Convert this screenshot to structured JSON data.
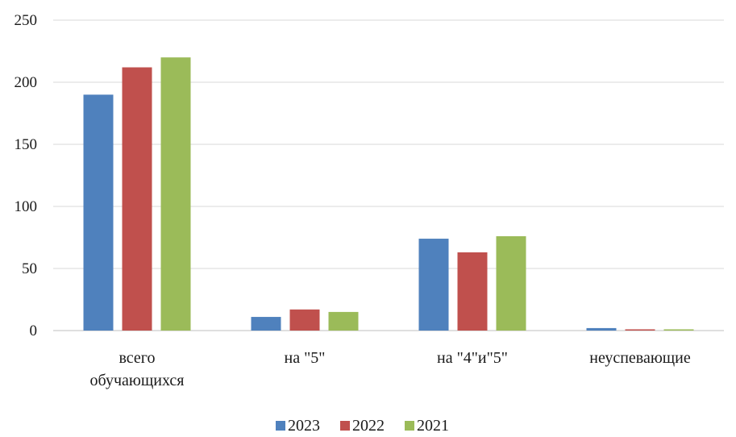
{
  "chart_data": {
    "type": "bar",
    "categories": [
      [
        "всего",
        "обучающихся"
      ],
      [
        "на \"5\""
      ],
      [
        "на \"4\"и\"5\""
      ],
      [
        "неуспевающие"
      ]
    ],
    "series": [
      {
        "name": "2023",
        "color": "#4f81bd",
        "values": [
          190,
          11,
          74,
          2
        ]
      },
      {
        "name": "2022",
        "color": "#c0504d",
        "values": [
          212,
          17,
          63,
          1
        ]
      },
      {
        "name": "2021",
        "color": "#9bbb59",
        "values": [
          220,
          15,
          76,
          1
        ]
      }
    ],
    "yticks": [
      "0",
      "50",
      "100",
      "150",
      "200",
      "250"
    ],
    "ylim": [
      0,
      250
    ],
    "grid": true,
    "legend": "bottom-center"
  }
}
